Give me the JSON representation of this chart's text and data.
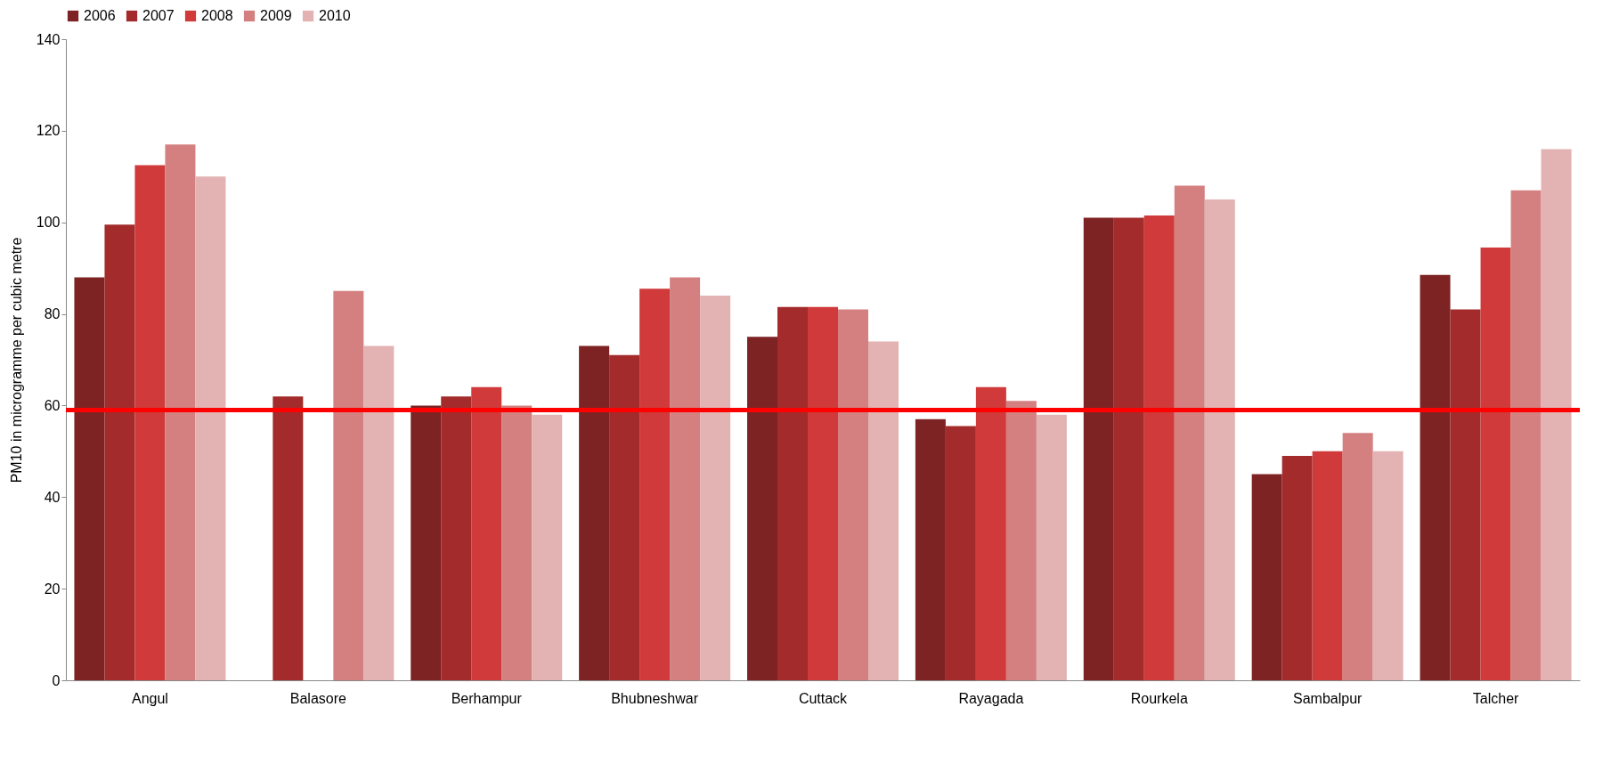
{
  "chart_data": {
    "type": "bar",
    "ylabel": "PM10 in microgramme per cubic metre",
    "categories": [
      "Angul",
      "Balasore",
      "Berhampur",
      "Bhubneshwar",
      "Cuttack",
      "Rayagada",
      "Rourkela",
      "Sambalpur",
      "Talcher"
    ],
    "series": [
      {
        "name": "2006",
        "color": "#7e2323",
        "values": [
          88,
          null,
          60,
          73,
          75,
          57,
          101,
          45,
          88.5
        ]
      },
      {
        "name": "2007",
        "color": "#a32b2b",
        "values": [
          99.5,
          62,
          62,
          71,
          81.5,
          55.5,
          101,
          49,
          81
        ]
      },
      {
        "name": "2008",
        "color": "#d03a3a",
        "values": [
          112.5,
          null,
          64,
          85.5,
          81.5,
          64,
          101.5,
          50,
          94.5
        ]
      },
      {
        "name": "2009",
        "color": "#d58080",
        "values": [
          117,
          85,
          60,
          88,
          81,
          61,
          108,
          54,
          107
        ]
      },
      {
        "name": "2010",
        "color": "#e3b2b2",
        "values": [
          110,
          73,
          58,
          84,
          74,
          58,
          105,
          50,
          116
        ]
      }
    ],
    "ylim": [
      0,
      140
    ],
    "yticks": [
      0,
      20,
      40,
      60,
      80,
      100,
      120,
      140
    ],
    "ref_lines": [
      {
        "axis": "y",
        "value": 59,
        "color": "#ff0000"
      }
    ],
    "legend": "top",
    "grid": false
  }
}
